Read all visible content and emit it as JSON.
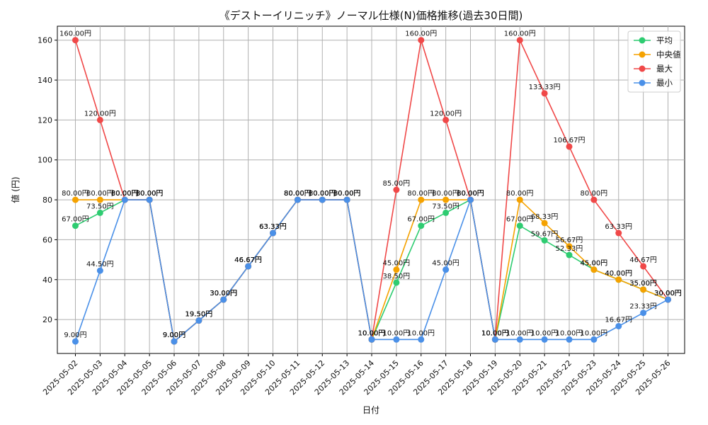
{
  "chart_data": {
    "type": "line",
    "title": "《デストーイリニッチ》ノーマル仕様(N)価格推移(過去30日間)",
    "xlabel": "日付",
    "ylabel": "値 (円)",
    "ylim": [
      3,
      167
    ],
    "yticks": [
      20,
      40,
      60,
      80,
      100,
      120,
      140,
      160
    ],
    "grid": true,
    "legend_position": "top-right",
    "value_suffix": "円",
    "categories": [
      "2025-05-02",
      "2025-05-03",
      "2025-05-04",
      "2025-05-05",
      "2025-05-06",
      "2025-05-07",
      "2025-05-08",
      "2025-05-09",
      "2025-05-10",
      "2025-05-11",
      "2025-05-12",
      "2025-05-13",
      "2025-05-14",
      "2025-05-15",
      "2025-05-16",
      "2025-05-17",
      "2025-05-18",
      "2025-05-19",
      "2025-05-20",
      "2025-05-21",
      "2025-05-22",
      "2025-05-23",
      "2025-05-24",
      "2025-05-25",
      "2025-05-26"
    ],
    "series": [
      {
        "name": "平均",
        "color": "#2ecc71",
        "values": [
          67.0,
          73.5,
          80.0,
          80.0,
          9.0,
          19.5,
          30.0,
          46.67,
          63.33,
          80.0,
          80.0,
          80.0,
          10.0,
          38.5,
          67.0,
          73.5,
          80.0,
          10.0,
          67.0,
          59.67,
          52.33,
          45.0,
          40.0,
          35.0,
          30.0
        ]
      },
      {
        "name": "中央値",
        "color": "#f5a200",
        "values": [
          80.0,
          80.0,
          80.0,
          80.0,
          9.0,
          19.5,
          30.0,
          46.67,
          63.33,
          80.0,
          80.0,
          80.0,
          10.0,
          45.0,
          80.0,
          80.0,
          80.0,
          10.0,
          80.0,
          68.33,
          56.67,
          45.0,
          40.0,
          35.0,
          30.0
        ]
      },
      {
        "name": "最大",
        "color": "#f04848",
        "values": [
          160.0,
          120.0,
          80.0,
          80.0,
          9.0,
          19.5,
          30.0,
          46.67,
          63.33,
          80.0,
          80.0,
          80.0,
          10.0,
          85.0,
          160.0,
          120.0,
          80.0,
          10.0,
          160.0,
          133.33,
          106.67,
          80.0,
          63.33,
          46.67,
          30.0
        ]
      },
      {
        "name": "最小",
        "color": "#4a90e8",
        "values": [
          9.0,
          44.5,
          80.0,
          80.0,
          9.0,
          19.5,
          30.0,
          46.67,
          63.33,
          80.0,
          80.0,
          80.0,
          10.0,
          10.0,
          10.0,
          45.0,
          80.0,
          10.0,
          10.0,
          10.0,
          10.0,
          10.0,
          16.67,
          23.33,
          30.0
        ]
      }
    ]
  }
}
